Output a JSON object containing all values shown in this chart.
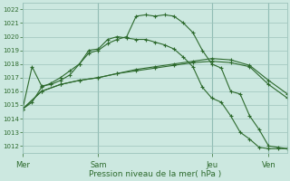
{
  "background_color": "#cce8e0",
  "grid_color": "#9dc4bc",
  "line_color": "#2d6a2d",
  "title": "Pression niveau de la mer( hPa )",
  "ylim": [
    1011.5,
    1022.5
  ],
  "yticks": [
    1012,
    1013,
    1014,
    1015,
    1016,
    1017,
    1018,
    1019,
    1020,
    1021,
    1022
  ],
  "day_labels": [
    "Mer",
    "Sam",
    "Jeu",
    "Ven"
  ],
  "day_positions": [
    0,
    8,
    20,
    26
  ],
  "series1_x": [
    0,
    1,
    2,
    3,
    4,
    5,
    6,
    7,
    8,
    9,
    10,
    11,
    12,
    13,
    14,
    15,
    16,
    17,
    18,
    19,
    20,
    21,
    22,
    23,
    24,
    25,
    26,
    27,
    28
  ],
  "series1": [
    1014.7,
    1015.2,
    1016.3,
    1016.6,
    1017.0,
    1017.5,
    1018.0,
    1018.8,
    1019.0,
    1019.5,
    1019.8,
    1020.0,
    1021.5,
    1021.6,
    1021.5,
    1021.6,
    1021.5,
    1021.0,
    1020.3,
    1019.0,
    1018.0,
    1017.7,
    1016.0,
    1015.8,
    1014.2,
    1013.2,
    1012.0,
    1011.9,
    1011.8
  ],
  "series2_x": [
    0,
    2,
    4,
    6,
    8,
    10,
    12,
    14,
    16,
    18,
    20,
    22,
    24,
    26,
    28
  ],
  "series2": [
    1014.7,
    1016.0,
    1016.5,
    1016.8,
    1017.0,
    1017.3,
    1017.5,
    1017.7,
    1017.9,
    1018.1,
    1018.2,
    1018.1,
    1017.8,
    1016.5,
    1015.5
  ],
  "series3_x": [
    0,
    2,
    4,
    6,
    8,
    10,
    12,
    14,
    16,
    18,
    20,
    22,
    24,
    26,
    28
  ],
  "series3": [
    1014.7,
    1016.0,
    1016.5,
    1016.8,
    1017.0,
    1017.3,
    1017.6,
    1017.8,
    1018.0,
    1018.2,
    1018.4,
    1018.3,
    1017.9,
    1016.8,
    1015.8
  ],
  "series4_x": [
    0,
    1,
    2,
    3,
    4,
    5,
    6,
    7,
    8,
    9,
    10,
    11,
    12,
    13,
    14,
    15,
    16,
    17,
    18,
    19,
    20,
    21,
    22,
    23,
    24,
    25,
    26,
    27,
    28
  ],
  "series4": [
    1014.7,
    1017.8,
    1016.4,
    1016.5,
    1016.8,
    1017.2,
    1018.0,
    1019.0,
    1019.1,
    1019.8,
    1020.0,
    1019.9,
    1019.8,
    1019.8,
    1019.6,
    1019.4,
    1019.1,
    1018.5,
    1017.8,
    1016.3,
    1015.5,
    1015.2,
    1014.2,
    1013.0,
    1012.5,
    1011.9,
    1011.8,
    1011.8,
    1011.8
  ]
}
